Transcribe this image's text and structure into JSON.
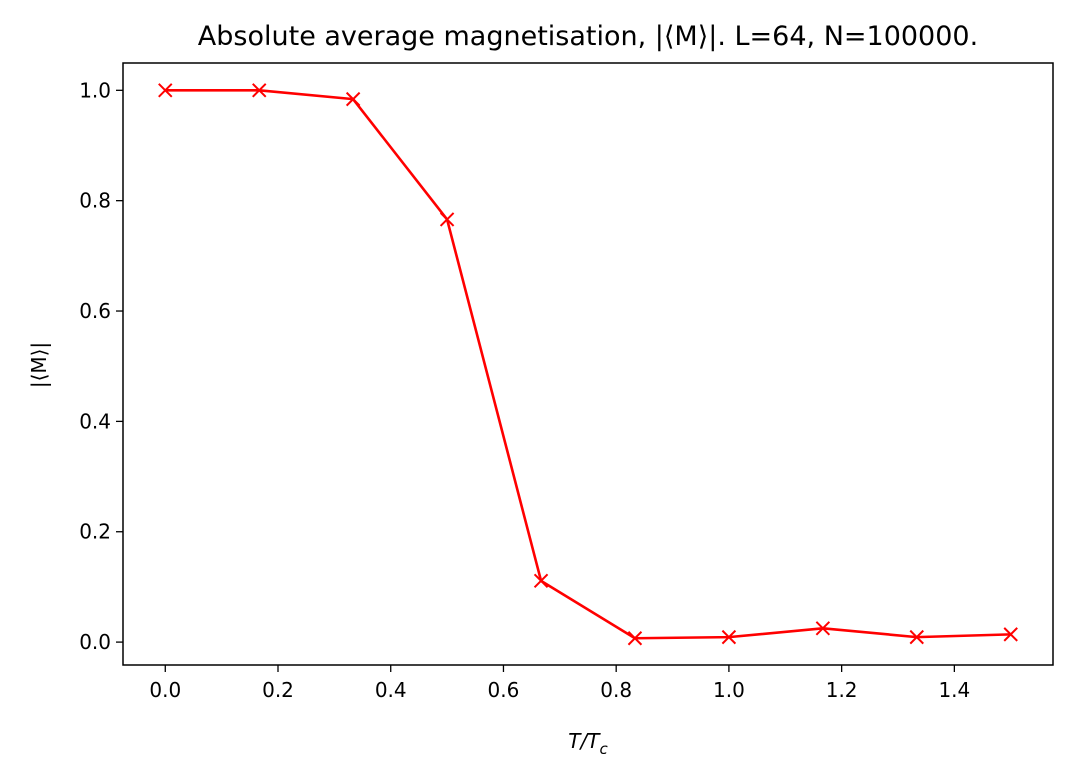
{
  "chart_data": {
    "type": "line",
    "title": "Absolute average magnetisation, |⟨M⟩|. L=64, N=100000.",
    "xlabel": {
      "main": "T/T",
      "sub": "c"
    },
    "ylabel": "|⟨M⟩|",
    "xlim": [
      -0.075,
      1.575
    ],
    "ylim": [
      -0.0415,
      1.0495
    ],
    "xticks": [
      0.0,
      0.2,
      0.4,
      0.6,
      0.8,
      1.0,
      1.2,
      1.4
    ],
    "xtick_labels": [
      "0.0",
      "0.2",
      "0.4",
      "0.6",
      "0.8",
      "1.0",
      "1.2",
      "1.4"
    ],
    "yticks": [
      0.0,
      0.2,
      0.4,
      0.6,
      0.8,
      1.0
    ],
    "ytick_labels": [
      "0.0",
      "0.2",
      "0.4",
      "0.6",
      "0.8",
      "1.0"
    ],
    "grid": false,
    "series": [
      {
        "color": "#ff0000",
        "marker": "x",
        "x": [
          0.0,
          0.1667,
          0.3333,
          0.5,
          0.6667,
          0.8333,
          1.0,
          1.1667,
          1.3333,
          1.5
        ],
        "y": [
          1.0,
          1.0,
          0.984,
          0.766,
          0.111,
          0.007,
          0.009,
          0.025,
          0.009,
          0.014
        ]
      }
    ]
  }
}
